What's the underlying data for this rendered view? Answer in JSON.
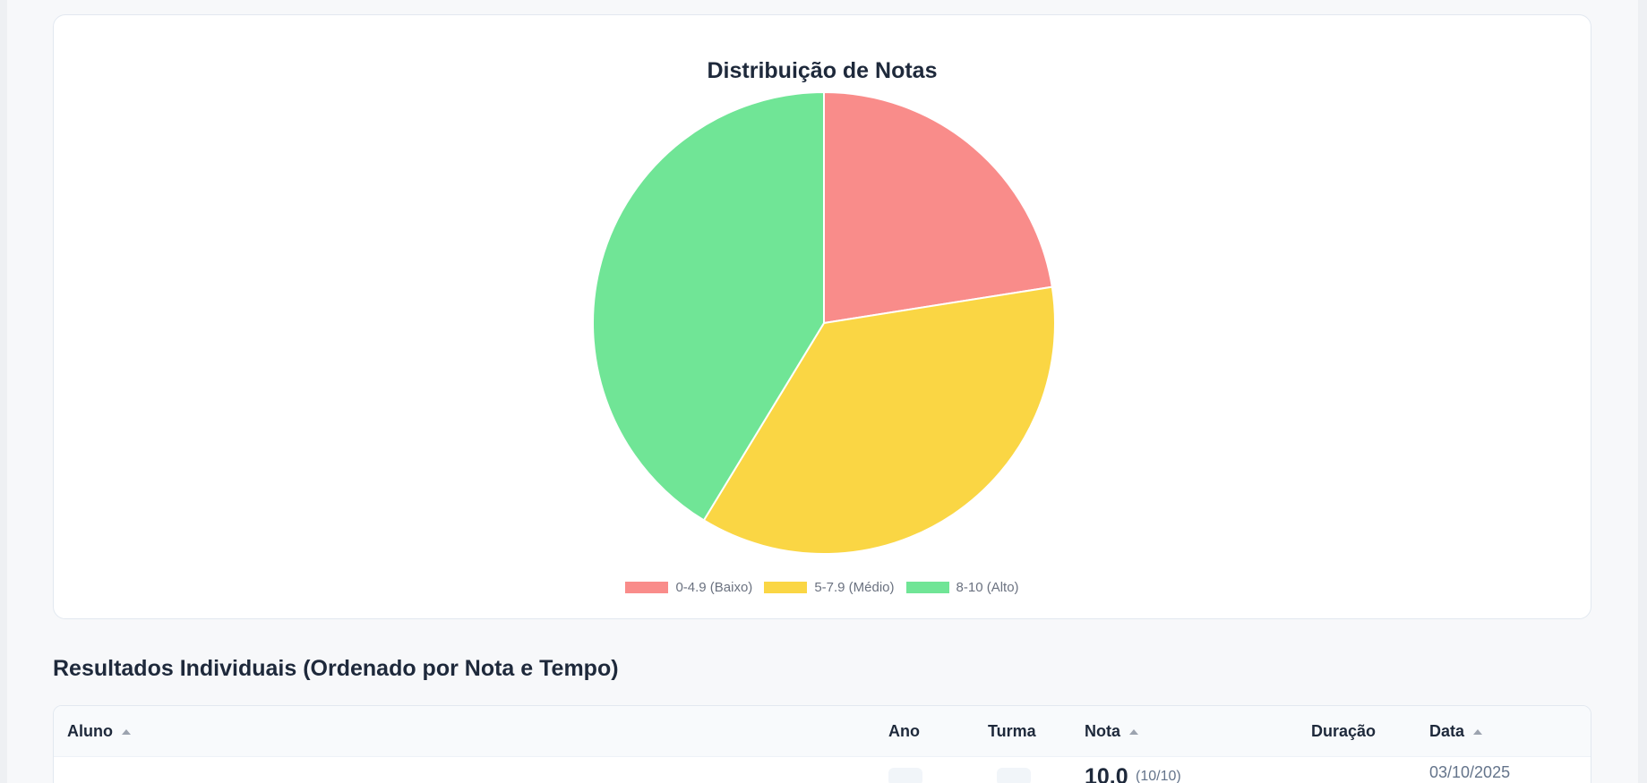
{
  "chart_data": {
    "type": "pie",
    "title": "Distribuição de Notas",
    "categories": [
      "0-4.9 (Baixo)",
      "5-7.9 (Médio)",
      "8-10 (Alto)"
    ],
    "values": [
      22.5,
      36.2,
      41.3
    ],
    "colors": [
      "#f98c8a",
      "#fad644",
      "#70e596"
    ],
    "legend_position": "bottom"
  },
  "section": {
    "title": "Resultados Individuais (Ordenado por Nota e Tempo)"
  },
  "table": {
    "columns": {
      "aluno": "Aluno",
      "ano": "Ano",
      "turma": "Turma",
      "nota": "Nota",
      "duracao": "Duração",
      "data": "Data"
    },
    "rows": [
      {
        "nota": "10.0",
        "nota_detail": "(10/10)",
        "data": "03/10/2025"
      }
    ]
  }
}
